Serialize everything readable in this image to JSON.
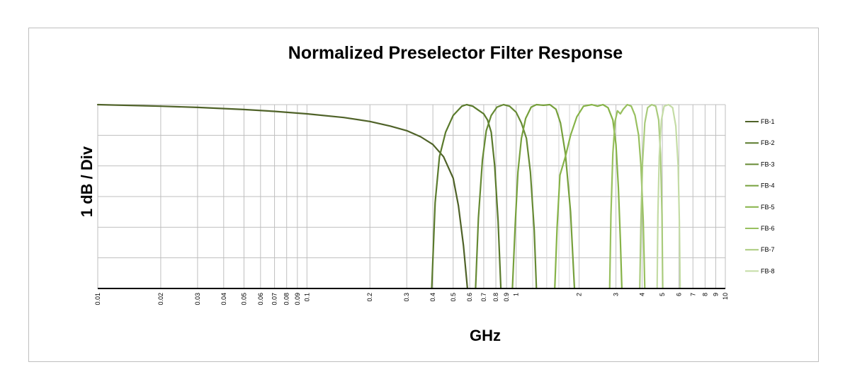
{
  "chart_data": {
    "type": "line",
    "title": "Normalized Preselector Filter Response",
    "xlabel": "GHz",
    "ylabel": "1 dB / Div",
    "x_scale": "log",
    "xlim": [
      0.01,
      10
    ],
    "ylim": [
      -6,
      0
    ],
    "y_unit": "dB",
    "grid": true,
    "legend_position": "right",
    "x_ticks": [
      {
        "value": 0.01,
        "label": "0.01"
      },
      {
        "value": 0.02,
        "label": "0.02"
      },
      {
        "value": 0.03,
        "label": "0.03"
      },
      {
        "value": 0.04,
        "label": "0.04"
      },
      {
        "value": 0.05,
        "label": "0.05"
      },
      {
        "value": 0.06,
        "label": "0.06"
      },
      {
        "value": 0.07,
        "label": "0.07"
      },
      {
        "value": 0.08,
        "label": "0.08"
      },
      {
        "value": 0.09,
        "label": "0.09"
      },
      {
        "value": 0.1,
        "label": "0.1"
      },
      {
        "value": 0.2,
        "label": "0.2"
      },
      {
        "value": 0.3,
        "label": "0.3"
      },
      {
        "value": 0.4,
        "label": "0.4"
      },
      {
        "value": 0.5,
        "label": "0.5"
      },
      {
        "value": 0.6,
        "label": "0.6"
      },
      {
        "value": 0.7,
        "label": "0.7"
      },
      {
        "value": 0.8,
        "label": "0.8"
      },
      {
        "value": 0.9,
        "label": "0.9"
      },
      {
        "value": 1,
        "label": "1"
      },
      {
        "value": 2,
        "label": "2"
      },
      {
        "value": 3,
        "label": "3"
      },
      {
        "value": 4,
        "label": "4"
      },
      {
        "value": 5,
        "label": "5"
      },
      {
        "value": 6,
        "label": "6"
      },
      {
        "value": 7,
        "label": "7"
      },
      {
        "value": 8,
        "label": "8"
      },
      {
        "value": 9,
        "label": "9"
      },
      {
        "value": 10,
        "label": "10"
      }
    ],
    "minor_gridlines_x": [
      1.2,
      1.4,
      1.6,
      1.8
    ],
    "series": [
      {
        "name": "FB-1",
        "color": "#4f6228",
        "points": [
          [
            0.01,
            0
          ],
          [
            0.02,
            -0.05
          ],
          [
            0.03,
            -0.09
          ],
          [
            0.05,
            -0.16
          ],
          [
            0.07,
            -0.22
          ],
          [
            0.1,
            -0.3
          ],
          [
            0.15,
            -0.42
          ],
          [
            0.2,
            -0.55
          ],
          [
            0.25,
            -0.7
          ],
          [
            0.3,
            -0.85
          ],
          [
            0.35,
            -1.05
          ],
          [
            0.4,
            -1.3
          ],
          [
            0.45,
            -1.7
          ],
          [
            0.5,
            -2.4
          ],
          [
            0.53,
            -3.3
          ],
          [
            0.56,
            -4.6
          ],
          [
            0.585,
            -6
          ]
        ]
      },
      {
        "name": "FB-2",
        "color": "#5a7a2c",
        "points": [
          [
            0.395,
            -6
          ],
          [
            0.41,
            -3.2
          ],
          [
            0.43,
            -1.7
          ],
          [
            0.46,
            -0.9
          ],
          [
            0.5,
            -0.35
          ],
          [
            0.55,
            -0.05
          ],
          [
            0.58,
            0
          ],
          [
            0.62,
            -0.05
          ],
          [
            0.66,
            -0.18
          ],
          [
            0.7,
            -0.3
          ],
          [
            0.73,
            -0.5
          ],
          [
            0.76,
            -0.9
          ],
          [
            0.79,
            -2
          ],
          [
            0.82,
            -3.8
          ],
          [
            0.845,
            -6
          ]
        ]
      },
      {
        "name": "FB-3",
        "color": "#668a34",
        "points": [
          [
            0.64,
            -6
          ],
          [
            0.66,
            -3.7
          ],
          [
            0.69,
            -1.8
          ],
          [
            0.72,
            -0.85
          ],
          [
            0.76,
            -0.35
          ],
          [
            0.81,
            -0.08
          ],
          [
            0.87,
            0
          ],
          [
            0.93,
            -0.05
          ],
          [
            1.0,
            -0.25
          ],
          [
            1.06,
            -0.6
          ],
          [
            1.12,
            -1.1
          ],
          [
            1.17,
            -2.2
          ],
          [
            1.22,
            -4.1
          ],
          [
            1.25,
            -6
          ]
        ]
      },
      {
        "name": "FB-4",
        "color": "#76a03c",
        "points": [
          [
            0.96,
            -6
          ],
          [
            0.99,
            -3.9
          ],
          [
            1.02,
            -2.2
          ],
          [
            1.06,
            -1.1
          ],
          [
            1.11,
            -0.45
          ],
          [
            1.18,
            -0.08
          ],
          [
            1.25,
            0
          ],
          [
            1.35,
            -0.02
          ],
          [
            1.45,
            0
          ],
          [
            1.55,
            -0.15
          ],
          [
            1.63,
            -0.6
          ],
          [
            1.72,
            -1.6
          ],
          [
            1.82,
            -3.5
          ],
          [
            1.9,
            -6
          ]
        ]
      },
      {
        "name": "FB-5",
        "color": "#86b348",
        "points": [
          [
            1.53,
            -6
          ],
          [
            1.57,
            -4.0
          ],
          [
            1.62,
            -2.3
          ],
          [
            1.72,
            -1.7
          ],
          [
            1.82,
            -1.0
          ],
          [
            1.95,
            -0.4
          ],
          [
            2.1,
            -0.05
          ],
          [
            2.3,
            0
          ],
          [
            2.45,
            -0.05
          ],
          [
            2.6,
            0
          ],
          [
            2.75,
            -0.1
          ],
          [
            2.9,
            -0.5
          ],
          [
            3.0,
            -1.3
          ],
          [
            3.08,
            -2.7
          ],
          [
            3.15,
            -4.4
          ],
          [
            3.2,
            -6
          ]
        ]
      },
      {
        "name": "FB-6",
        "color": "#98c05f",
        "points": [
          [
            2.8,
            -6
          ],
          [
            2.84,
            -3.6
          ],
          [
            2.9,
            -1.6
          ],
          [
            2.97,
            -0.55
          ],
          [
            3.05,
            -0.2
          ],
          [
            3.15,
            -0.3
          ],
          [
            3.25,
            -0.15
          ],
          [
            3.4,
            0
          ],
          [
            3.55,
            -0.05
          ],
          [
            3.7,
            -0.35
          ],
          [
            3.85,
            -1.0
          ],
          [
            3.95,
            -2.0
          ],
          [
            4.05,
            -3.8
          ],
          [
            4.12,
            -6
          ]
        ]
      },
      {
        "name": "FB-7",
        "color": "#a9cb7c",
        "points": [
          [
            3.9,
            -6
          ],
          [
            3.95,
            -3.8
          ],
          [
            4.02,
            -1.9
          ],
          [
            4.12,
            -0.6
          ],
          [
            4.25,
            -0.1
          ],
          [
            4.45,
            0
          ],
          [
            4.65,
            -0.05
          ],
          [
            4.8,
            -0.5
          ],
          [
            4.9,
            -1.6
          ],
          [
            4.98,
            -3.6
          ],
          [
            5.02,
            -6
          ]
        ]
      },
      {
        "name": "FB-8",
        "color": "#c4dca5",
        "points": [
          [
            4.72,
            -6
          ],
          [
            4.76,
            -3.6
          ],
          [
            4.83,
            -1.7
          ],
          [
            4.95,
            -0.5
          ],
          [
            5.1,
            -0.05
          ],
          [
            5.35,
            0
          ],
          [
            5.6,
            -0.1
          ],
          [
            5.8,
            -0.7
          ],
          [
            5.95,
            -2.0
          ],
          [
            6.03,
            -3.8
          ],
          [
            6.08,
            -6
          ]
        ]
      }
    ]
  }
}
